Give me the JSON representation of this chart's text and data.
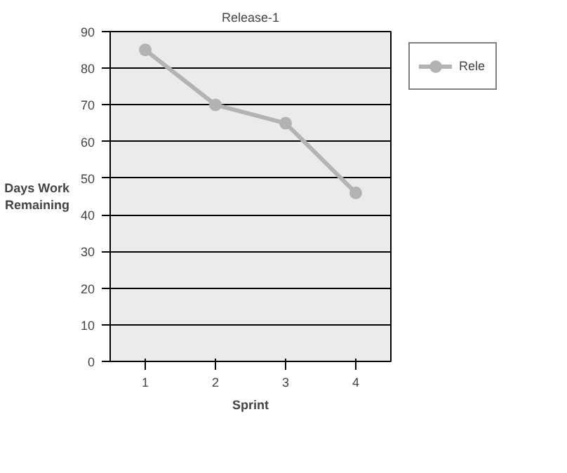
{
  "chart_data": {
    "type": "line",
    "title": "Release-1",
    "xlabel": "Sprint",
    "ylabel": "Days Work\nRemaining",
    "categories": [
      "1",
      "2",
      "3",
      "4"
    ],
    "series": [
      {
        "name": "Rele",
        "color": "#b3b3b3",
        "values": [
          85,
          70,
          65,
          46
        ]
      }
    ],
    "ylim": [
      0,
      90
    ],
    "yticks": [
      0,
      10,
      20,
      30,
      40,
      50,
      60,
      70,
      80,
      90
    ],
    "grid": "y",
    "legend": "right",
    "marker": "circle",
    "line_style": "solid"
  }
}
